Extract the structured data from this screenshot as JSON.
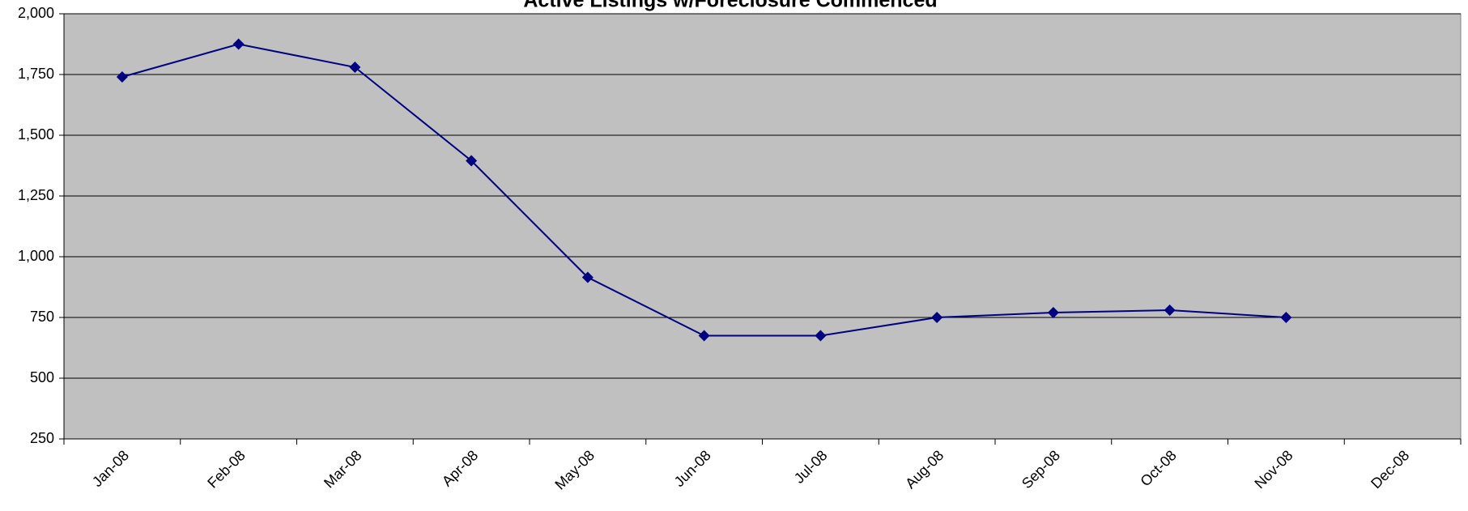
{
  "chart_data": {
    "type": "line",
    "title": "Active Listings w/Foreclosure Commenced",
    "categories": [
      "Jan-08",
      "Feb-08",
      "Mar-08",
      "Apr-08",
      "May-08",
      "Jun-08",
      "Jul-08",
      "Aug-08",
      "Sep-08",
      "Oct-08",
      "Nov-08",
      "Dec-08"
    ],
    "series": [
      {
        "name": "Active Listings w/Foreclosure Commenced",
        "color": "#000080",
        "values": [
          1740,
          1875,
          1780,
          1395,
          915,
          675,
          675,
          750,
          770,
          780,
          750,
          null
        ]
      }
    ],
    "ylim": [
      250,
      2000
    ],
    "yticks": [
      250,
      500,
      750,
      {
        "value": 1000,
        "label": "1,000"
      },
      {
        "value": 1250,
        "label": "1,250"
      },
      {
        "value": 1500,
        "label": "1,500"
      },
      {
        "value": 1750,
        "label": "1,750"
      },
      {
        "value": 2000,
        "label": "2,000"
      }
    ],
    "grid": true,
    "plot_background": "#c0c0c0"
  }
}
